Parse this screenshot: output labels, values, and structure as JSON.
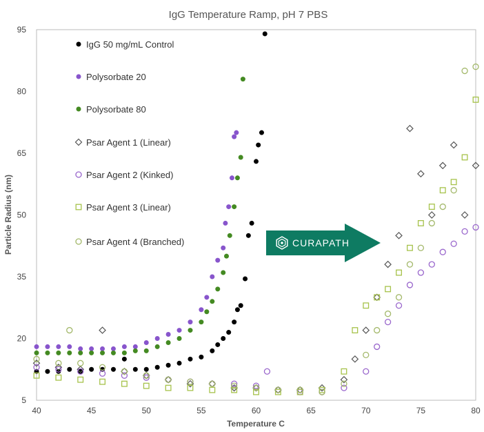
{
  "chart_data": {
    "type": "scatter",
    "title": "IgG Temperature Ramp, pH 7 PBS",
    "xlabel": "Temperature C",
    "ylabel": "Particle Radius (nm)",
    "xlim": [
      40,
      80
    ],
    "ylim": [
      5,
      95
    ],
    "xticks": [
      "40",
      "45",
      "50",
      "55",
      "60",
      "65",
      "70",
      "75",
      "80"
    ],
    "yticks": [
      "5",
      "20",
      "35",
      "50",
      "65",
      "80",
      "95"
    ],
    "grid": false,
    "legend_position": "top-left",
    "series": [
      {
        "name": "IgG 50 mg/mL Control",
        "marker": "circle-filled",
        "color": "#000000",
        "x": [
          40,
          41,
          42,
          43,
          44,
          45,
          46,
          47,
          48,
          49,
          50,
          51,
          52,
          53,
          54,
          55,
          56,
          56.5,
          57,
          57.5,
          58,
          58.3,
          58.6,
          59,
          59.3,
          59.6,
          60,
          60.2,
          60.5,
          60.8
        ],
        "y": [
          12,
          12,
          12,
          12.5,
          12,
          12.5,
          12.5,
          12.5,
          15,
          12.5,
          12.5,
          13,
          13.5,
          14,
          15,
          15.5,
          17,
          18.5,
          20,
          21.5,
          24,
          27,
          28,
          34.5,
          45,
          48,
          63,
          67,
          70,
          94
        ]
      },
      {
        "name": "Polysorbate 20",
        "marker": "circle-filled",
        "color": "#8855cc",
        "x": [
          40,
          41,
          42,
          43,
          44,
          45,
          46,
          47,
          48,
          49,
          50,
          51,
          52,
          53,
          54,
          55,
          55.5,
          56,
          56.5,
          57,
          57.2,
          57.5,
          57.8,
          58,
          58.2
        ],
        "y": [
          18,
          18,
          18,
          18,
          17.5,
          17.5,
          17.5,
          17.5,
          18,
          18,
          19,
          20,
          21,
          22,
          24,
          27,
          30,
          35,
          39,
          42,
          48,
          52,
          59,
          69,
          70
        ]
      },
      {
        "name": "Polysorbate 80",
        "marker": "circle-filled",
        "color": "#448a22",
        "x": [
          40,
          41,
          42,
          43,
          44,
          45,
          46,
          47,
          48,
          49,
          50,
          51,
          52,
          53,
          54,
          55,
          55.5,
          56,
          56.5,
          57,
          57.3,
          57.6,
          58,
          58.3,
          58.6,
          58.8
        ],
        "y": [
          16.5,
          16.5,
          16.5,
          16.5,
          16.5,
          16.5,
          16.5,
          16.5,
          16.5,
          17,
          17,
          18,
          19,
          20,
          22,
          24,
          26.5,
          29,
          32,
          36,
          40,
          45,
          52,
          59,
          64,
          83
        ]
      },
      {
        "name": "Psar Agent 1 (Linear)",
        "marker": "diamond-open",
        "color": "#555555",
        "x": [
          40,
          42,
          44,
          46,
          48,
          50,
          52,
          54,
          56,
          58,
          60,
          62,
          64,
          66,
          68,
          69,
          70,
          71,
          72,
          73,
          74,
          75,
          76,
          77,
          78,
          79,
          80
        ],
        "y": [
          14,
          13,
          12.5,
          22,
          12,
          11,
          10,
          9,
          9,
          8,
          8,
          7.5,
          7.5,
          8,
          10,
          15,
          22,
          30,
          38,
          45,
          71,
          60,
          50,
          62,
          67,
          50,
          62
        ]
      },
      {
        "name": "Psar Agent 2 (Kinked)",
        "marker": "circle-open",
        "color": "#9966cc",
        "x": [
          40,
          42,
          44,
          46,
          48,
          50,
          52,
          54,
          56,
          58,
          60,
          61,
          62,
          64,
          66,
          68,
          70,
          71,
          72,
          73,
          74,
          75,
          76,
          77,
          78,
          79,
          80
        ],
        "y": [
          13,
          12.5,
          12,
          11.5,
          11,
          10.5,
          10,
          9.5,
          9,
          9,
          8.5,
          12,
          7.5,
          7,
          7,
          8,
          12,
          18,
          24,
          28,
          33,
          36,
          38,
          41,
          43,
          46,
          47
        ]
      },
      {
        "name": "Psar Agent 3 (Linear)",
        "marker": "square-open",
        "color": "#a6c24a",
        "x": [
          40,
          42,
          44,
          46,
          48,
          50,
          52,
          54,
          56,
          58,
          60,
          62,
          64,
          66,
          68,
          69,
          70,
          71,
          72,
          73,
          74,
          75,
          76,
          77,
          78,
          79,
          80
        ],
        "y": [
          11,
          10.5,
          10,
          9.5,
          9,
          8.5,
          8,
          8,
          7.5,
          7.5,
          7,
          7,
          7,
          7.5,
          12,
          22,
          28,
          30,
          32,
          36,
          42,
          48,
          52,
          56,
          58,
          64,
          78
        ]
      },
      {
        "name": "Psar Agent 4 (Branched)",
        "marker": "circle-open",
        "color": "#a3b86a",
        "x": [
          40,
          42,
          43,
          44,
          46,
          48,
          50,
          52,
          54,
          56,
          58,
          60,
          62,
          64,
          66,
          68,
          70,
          71,
          72,
          73,
          74,
          75,
          76,
          77,
          78,
          79,
          80
        ],
        "y": [
          15,
          14,
          22,
          14,
          13,
          12,
          11,
          10,
          9.5,
          9,
          8.5,
          8,
          7.5,
          7.5,
          7,
          9,
          16,
          22,
          26,
          30,
          38,
          42,
          48,
          52,
          56,
          85,
          86
        ]
      }
    ]
  },
  "brand": {
    "name": "CURAPATH",
    "color": "#0e7b62"
  }
}
